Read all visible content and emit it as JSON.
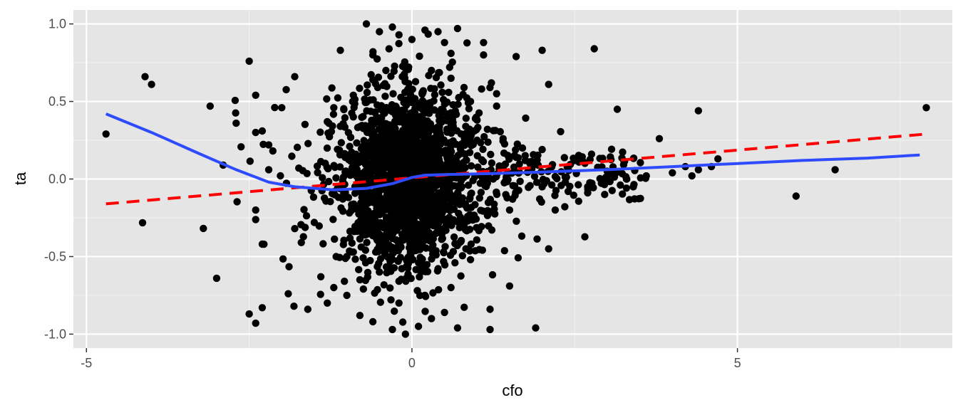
{
  "chart_data": {
    "type": "scatter",
    "title": "",
    "xlabel": "cfo",
    "ylabel": "ta",
    "xlim": [
      -5.2,
      8.3
    ],
    "ylim": [
      -1.09,
      1.09
    ],
    "x_ticks": [
      -5,
      0,
      5
    ],
    "x_tick_labels": [
      "-5",
      "0",
      "5"
    ],
    "y_ticks": [
      -1.0,
      -0.5,
      0.0,
      0.5,
      1.0
    ],
    "y_tick_labels": [
      "-1.0",
      "-0.5",
      "0.0",
      "0.5",
      "1.0"
    ],
    "grid": true,
    "legend": "none",
    "colors": {
      "panel": "#e5e5e5",
      "grid_major": "#ffffff",
      "points": "#000000",
      "loess": "#2f4bff",
      "linear": "#ff0000"
    },
    "points_sample": [
      [
        -4.7,
        0.29
      ],
      [
        -4.1,
        0.66
      ],
      [
        -4.0,
        0.61
      ],
      [
        -3.1,
        0.47
      ],
      [
        -3.0,
        -0.64
      ],
      [
        -2.9,
        0.09
      ],
      [
        -2.7,
        0.36
      ],
      [
        -2.5,
        0.76
      ],
      [
        -2.4,
        0.54
      ],
      [
        -2.4,
        0.3
      ],
      [
        -2.3,
        0.31
      ],
      [
        -2.2,
        0.22
      ],
      [
        -2.2,
        0.06
      ],
      [
        -2.3,
        -0.42
      ],
      [
        -2.5,
        -0.87
      ],
      [
        -2.4,
        -0.93
      ],
      [
        -2.3,
        -0.83
      ],
      [
        -2.4,
        -0.2
      ],
      [
        -2.0,
        0.46
      ],
      [
        -1.8,
        0.66
      ],
      [
        -1.9,
        -0.74
      ],
      [
        -1.8,
        -0.32
      ],
      [
        -1.7,
        -0.41
      ],
      [
        -1.6,
        -0.84
      ],
      [
        -1.5,
        -0.28
      ],
      [
        -1.4,
        -0.63
      ],
      [
        -1.3,
        0.37
      ],
      [
        -1.3,
        -0.8
      ],
      [
        -1.2,
        0.46
      ],
      [
        -1.1,
        0.83
      ],
      [
        -1.0,
        -0.5
      ],
      [
        -0.9,
        0.54
      ],
      [
        -0.8,
        -0.88
      ],
      [
        -0.7,
        1.0
      ],
      [
        -0.6,
        0.8
      ],
      [
        -0.5,
        0.95
      ],
      [
        -0.3,
        0.98
      ],
      [
        -0.2,
        0.93
      ],
      [
        0.0,
        0.9
      ],
      [
        0.2,
        0.96
      ],
      [
        0.4,
        0.95
      ],
      [
        0.5,
        0.88
      ],
      [
        0.7,
        0.97
      ],
      [
        0.6,
        0.81
      ],
      [
        1.1,
        0.88
      ],
      [
        1.1,
        0.8
      ],
      [
        1.6,
        0.79
      ],
      [
        2.0,
        0.83
      ],
      [
        2.1,
        0.61
      ],
      [
        1.3,
        0.55
      ],
      [
        1.3,
        0.47
      ],
      [
        1.0,
        0.38
      ],
      [
        0.9,
        0.5
      ],
      [
        0.8,
        0.59
      ],
      [
        0.6,
        0.65
      ],
      [
        0.3,
        0.7
      ],
      [
        -0.4,
        0.7
      ],
      [
        -0.6,
        0.64
      ],
      [
        -0.9,
        0.4
      ],
      [
        -1.1,
        0.34
      ],
      [
        2.8,
        0.84
      ],
      [
        1.5,
        -0.69
      ],
      [
        2.1,
        -0.45
      ],
      [
        2.2,
        -0.2
      ],
      [
        1.5,
        -0.2
      ],
      [
        1.2,
        -0.97
      ],
      [
        1.2,
        -0.84
      ],
      [
        0.7,
        -0.96
      ],
      [
        1.9,
        -0.96
      ],
      [
        0.5,
        -0.86
      ],
      [
        0.3,
        -0.9
      ],
      [
        0.1,
        -0.95
      ],
      [
        -0.1,
        -1.0
      ],
      [
        -0.3,
        -0.97
      ],
      [
        -0.6,
        -0.92
      ],
      [
        -1.0,
        -0.75
      ],
      [
        -1.2,
        -0.7
      ],
      [
        0.9,
        -0.52
      ],
      [
        0.6,
        -0.7
      ],
      [
        0.2,
        -0.75
      ],
      [
        -0.2,
        -0.8
      ],
      [
        -0.5,
        -0.6
      ],
      [
        -0.8,
        -0.65
      ],
      [
        3.0,
        0.05
      ],
      [
        3.3,
        0.0
      ],
      [
        3.4,
        -0.05
      ],
      [
        3.6,
        0.02
      ],
      [
        3.8,
        0.26
      ],
      [
        4.0,
        0.04
      ],
      [
        4.2,
        0.08
      ],
      [
        4.3,
        0.02
      ],
      [
        4.4,
        0.06
      ],
      [
        4.4,
        0.44
      ],
      [
        4.6,
        0.08
      ],
      [
        4.7,
        0.13
      ],
      [
        5.9,
        -0.11
      ],
      [
        6.5,
        0.06
      ],
      [
        7.9,
        0.46
      ],
      [
        2.5,
        0.12
      ],
      [
        2.7,
        -0.05
      ],
      [
        2.4,
        -0.08
      ],
      [
        2.0,
        -0.05
      ],
      [
        1.8,
        0.11
      ],
      [
        1.6,
        0.14
      ],
      [
        1.4,
        0.26
      ],
      [
        2.0,
        0.19
      ],
      [
        1.0,
        0.25
      ],
      [
        0.8,
        -0.3
      ]
    ],
    "series": [
      {
        "values": [
          [
            -4.7,
            0.42
          ],
          [
            -4.0,
            0.3
          ],
          [
            -3.3,
            0.17
          ],
          [
            -2.7,
            0.06
          ],
          [
            -2.2,
            -0.02
          ],
          [
            -1.8,
            -0.05
          ],
          [
            -1.2,
            -0.07
          ],
          [
            -0.7,
            -0.06
          ],
          [
            -0.3,
            -0.03
          ],
          [
            0.0,
            0.01
          ],
          [
            0.2,
            0.025
          ],
          [
            0.6,
            0.03
          ],
          [
            1.2,
            0.035
          ],
          [
            2.0,
            0.045
          ],
          [
            3.0,
            0.06
          ],
          [
            4.0,
            0.08
          ],
          [
            5.0,
            0.1
          ],
          [
            6.0,
            0.12
          ],
          [
            7.0,
            0.135
          ],
          [
            7.8,
            0.155
          ]
        ]
      },
      {
        "values": [
          [
            -4.7,
            -0.16
          ],
          [
            7.9,
            0.29
          ]
        ]
      }
    ]
  }
}
